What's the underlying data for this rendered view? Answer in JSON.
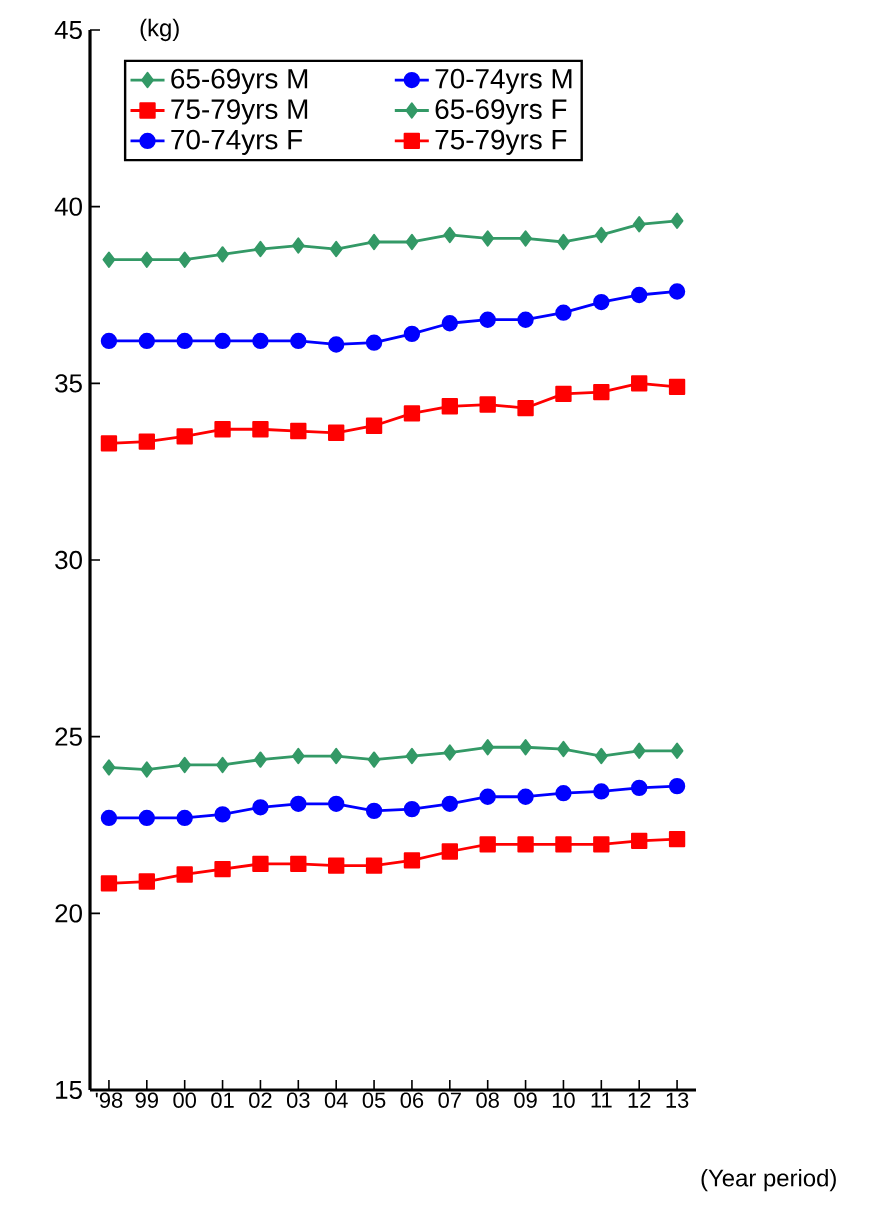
{
  "chart_data": {
    "type": "line",
    "xlabel": "(Year period)",
    "ylabel": "(kg)",
    "categories": [
      "'98",
      "99",
      "00",
      "01",
      "02",
      "03",
      "04",
      "05",
      "06",
      "07",
      "08",
      "09",
      "10",
      "11",
      "12",
      "13"
    ],
    "ylim": [
      15,
      45
    ],
    "yticks": [
      15,
      20,
      25,
      30,
      35,
      40,
      45
    ],
    "legend": "top",
    "grid": false,
    "line_style": "solid",
    "series": [
      {
        "name": "65-69yrs M",
        "color": "#339966",
        "marker": "diamond",
        "values": [
          38.5,
          38.5,
          38.5,
          38.65,
          38.8,
          38.9,
          38.8,
          39.0,
          39.0,
          39.2,
          39.1,
          39.1,
          39.0,
          39.2,
          39.5,
          39.6
        ]
      },
      {
        "name": "70-74yrs M",
        "color": "#0000ff",
        "marker": "circle",
        "values": [
          36.2,
          36.2,
          36.2,
          36.2,
          36.2,
          36.2,
          36.1,
          36.15,
          36.4,
          36.7,
          36.8,
          36.8,
          37.0,
          37.3,
          37.5,
          37.6
        ]
      },
      {
        "name": "75-79yrs M",
        "color": "#ff0000",
        "marker": "square",
        "values": [
          33.3,
          33.35,
          33.5,
          33.7,
          33.7,
          33.65,
          33.6,
          33.8,
          34.15,
          34.35,
          34.4,
          34.3,
          34.7,
          34.75,
          35.0,
          34.9
        ]
      },
      {
        "name": "65-69yrs F",
        "color": "#339966",
        "marker": "diamond",
        "values": [
          24.13,
          24.07,
          24.2,
          24.2,
          24.35,
          24.45,
          24.45,
          24.35,
          24.45,
          24.55,
          24.7,
          24.7,
          24.65,
          24.45,
          24.6,
          24.6
        ]
      },
      {
        "name": "70-74yrs F",
        "color": "#0000ff",
        "marker": "circle",
        "values": [
          22.7,
          22.7,
          22.7,
          22.8,
          23.0,
          23.1,
          23.1,
          22.9,
          22.95,
          23.1,
          23.3,
          23.3,
          23.4,
          23.45,
          23.55,
          23.6
        ]
      },
      {
        "name": "75-79yrs F",
        "color": "#ff0000",
        "marker": "square",
        "values": [
          20.85,
          20.9,
          21.1,
          21.25,
          21.4,
          21.4,
          21.35,
          21.35,
          21.5,
          21.75,
          21.95,
          21.95,
          21.95,
          21.95,
          22.05,
          22.1
        ]
      }
    ]
  }
}
